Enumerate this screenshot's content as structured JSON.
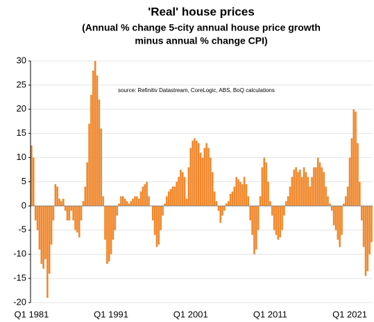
{
  "chart_data": {
    "type": "bar",
    "title": "'Real' house prices",
    "subtitle": [
      "(Annual % change 5-city annual house price growth",
      "minus annual % change CPI)"
    ],
    "annotation": "source:  Refinitiv Datastream, CoreLogic, ABS, BoQ calculations",
    "categories": [
      "Q1 1981",
      null,
      null,
      null,
      null,
      null,
      null,
      null,
      null,
      null,
      null,
      null,
      null,
      null,
      null,
      null,
      null,
      null,
      null,
      null,
      null,
      null,
      null,
      null,
      null,
      null,
      null,
      null,
      null,
      null,
      null,
      null,
      null,
      null,
      null,
      null,
      null,
      null,
      null,
      null,
      "Q1 1991",
      null,
      null,
      null,
      null,
      null,
      null,
      null,
      null,
      null,
      null,
      null,
      null,
      null,
      null,
      null,
      null,
      null,
      null,
      null,
      null,
      null,
      null,
      null,
      null,
      null,
      null,
      null,
      null,
      null,
      null,
      null,
      null,
      null,
      null,
      null,
      null,
      null,
      null,
      null,
      "Q1 2001",
      null,
      null,
      null,
      null,
      null,
      null,
      null,
      null,
      null,
      null,
      null,
      null,
      null,
      null,
      null,
      null,
      null,
      null,
      null,
      null,
      null,
      null,
      null,
      null,
      null,
      null,
      null,
      null,
      null,
      null,
      null,
      null,
      null,
      null,
      null,
      null,
      null,
      null,
      null,
      "Q1 2011",
      null,
      null,
      null,
      null,
      null,
      null,
      null,
      null,
      null,
      null,
      null,
      null,
      null,
      null,
      null,
      null,
      null,
      null,
      null,
      null,
      null,
      null,
      null,
      null,
      null,
      null,
      null,
      null,
      null,
      null,
      null,
      null,
      null,
      null,
      null,
      null,
      null,
      null,
      null,
      "Q1 2021",
      null,
      null,
      null,
      null,
      null,
      null,
      null,
      null,
      null,
      null,
      null
    ],
    "values": [
      12.5,
      10,
      -3,
      -5,
      -9,
      -12,
      -13,
      -11,
      -19,
      -14,
      -8,
      -3,
      4.5,
      4,
      1.5,
      1,
      1.5,
      -1,
      -3,
      -3,
      -1,
      -3,
      -5,
      -5.5,
      -6.5,
      -3,
      1,
      4,
      9,
      17,
      23,
      28,
      30,
      27,
      22,
      16,
      2,
      -7,
      -12,
      -11.5,
      -10,
      -7,
      -5,
      -2,
      0.5,
      2,
      2,
      1.5,
      1,
      0.5,
      1,
      1.5,
      2,
      2,
      1.5,
      3,
      4,
      4.5,
      5,
      2,
      0,
      -3,
      -6,
      -8.5,
      -8,
      -5,
      -2,
      0.5,
      2,
      3,
      3.5,
      4,
      4,
      5,
      6,
      7.5,
      7,
      6,
      1.5,
      8,
      12,
      13.5,
      14,
      13.5,
      13,
      11,
      10,
      12,
      13,
      12,
      10,
      7,
      3,
      1,
      -1,
      -3.5,
      -2,
      -1,
      0.5,
      1,
      2.5,
      3,
      4,
      6,
      5.5,
      5,
      4.5,
      6,
      4.5,
      2,
      -3,
      -6,
      -10,
      -9,
      -5,
      2,
      8,
      10,
      9,
      5,
      1,
      -2,
      -5,
      -6,
      -7,
      -6.5,
      -5,
      -2,
      1,
      2,
      4,
      6,
      7.5,
      8,
      7,
      7.5,
      6,
      8,
      7,
      6,
      4,
      6,
      8,
      8,
      10,
      9,
      8,
      7,
      4,
      2,
      0.5,
      -1,
      -4,
      -5,
      -7,
      -8.5,
      -6,
      0.5,
      2,
      4,
      10,
      14,
      20,
      19.5,
      13,
      5,
      -3,
      -8.5,
      -14.5,
      -13.5,
      -10,
      -7.5
    ],
    "color": "#f0882c",
    "ylim": [
      -20,
      30
    ],
    "yticks": [
      -20,
      -15,
      -10,
      -5,
      0,
      5,
      10,
      15,
      20,
      25,
      30
    ],
    "grid": true
  }
}
